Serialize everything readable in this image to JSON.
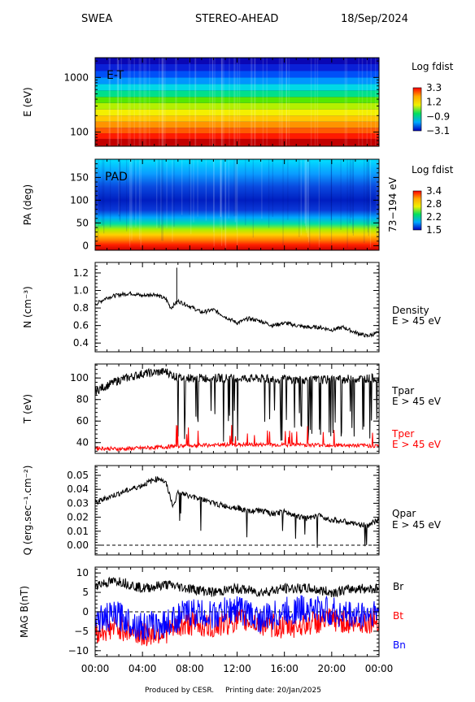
{
  "header": {
    "instrument": "SWEA",
    "spacecraft": "STEREO-AHEAD",
    "date": "18/Sep/2024"
  },
  "footer": {
    "produced_by": "Produced by CESR.",
    "printing_date": "Printing date: 20/Jan/2025"
  },
  "x_axis": {
    "ticks": [
      0,
      4,
      8,
      12,
      16,
      20,
      24
    ],
    "tick_labels": [
      "00:00",
      "04:00",
      "08:00",
      "12:00",
      "16:00",
      "20:00",
      "00:00"
    ],
    "range_hours": [
      0,
      24
    ]
  },
  "colors": {
    "black": "#000000",
    "red": "#ff0000",
    "blue": "#0000ff"
  },
  "chart_data": [
    {
      "type": "heatmap",
      "panel": "energy-time",
      "label": "E-T",
      "ylabel": "E (eV)",
      "yscale": "log",
      "ylim": [
        55,
        2300
      ],
      "yticks": [
        100,
        1000
      ],
      "ytick_labels": [
        "100",
        "1000"
      ],
      "energy_bands_eV": [
        60,
        75,
        95,
        120,
        155,
        200,
        260,
        340,
        440,
        580,
        760,
        1000,
        1320,
        1750,
        2250
      ],
      "band_colors": [
        "#c20000",
        "#ff1a00",
        "#ff5a00",
        "#ff9400",
        "#ffc800",
        "#f4f000",
        "#b4f000",
        "#56e800",
        "#00e08a",
        "#00d8e6",
        "#0096ff",
        "#0050f8",
        "#0a20d8",
        "#0a06b4"
      ],
      "colorbar": {
        "title": "Log fdist",
        "labels": [
          "3.3",
          "1.2",
          "−0.9",
          "−3.1"
        ],
        "range": [
          -3.1,
          3.3
        ]
      }
    },
    {
      "type": "heatmap",
      "panel": "pitch-angle",
      "label": "PAD",
      "ylabel": "PA (deg)",
      "right_label": "73−194 eV",
      "ylim": [
        -10,
        190
      ],
      "yticks": [
        0,
        50,
        100,
        150
      ],
      "ytick_labels": [
        "0",
        "50",
        "100",
        "150"
      ],
      "colorbar": {
        "title": "Log fdist",
        "labels": [
          "3.4",
          "2.8",
          "2.2",
          "1.5"
        ],
        "range": [
          1.5,
          3.4
        ]
      }
    },
    {
      "type": "line",
      "panel": "density",
      "ylabel": "N (cm⁻³)",
      "legend": [
        "Density",
        "E > 45 eV"
      ],
      "ylim": [
        0.3,
        1.32
      ],
      "yticks": [
        0.4,
        0.6,
        0.8,
        1.0,
        1.2
      ],
      "ytick_labels": [
        "0.4",
        "0.6",
        "0.8",
        "1.0",
        "1.2"
      ],
      "x_hours": [
        0,
        1,
        2,
        3,
        4,
        5,
        6,
        6.4,
        7,
        8,
        9,
        10,
        11,
        12,
        13,
        14,
        15,
        16,
        17,
        18,
        19,
        20,
        21,
        22,
        23,
        24
      ],
      "values": [
        0.84,
        0.92,
        0.95,
        0.97,
        0.94,
        0.96,
        0.9,
        0.8,
        0.88,
        0.82,
        0.75,
        0.78,
        0.7,
        0.63,
        0.68,
        0.65,
        0.6,
        0.63,
        0.6,
        0.58,
        0.58,
        0.55,
        0.58,
        0.52,
        0.48,
        0.52
      ],
      "spike": {
        "x": 6.9,
        "y": 1.26
      }
    },
    {
      "type": "line",
      "panel": "temperature",
      "ylabel": "T (eV)",
      "ylim": [
        30,
        113
      ],
      "yticks": [
        40,
        60,
        80,
        100
      ],
      "ytick_labels": [
        "40",
        "60",
        "80",
        "100"
      ],
      "series": [
        {
          "name": "Tpar",
          "sublabel": "E > 45 eV",
          "color": "#000000",
          "x_hours": [
            0,
            2,
            4,
            6,
            7,
            12,
            18,
            24
          ],
          "values": [
            88,
            98,
            104,
            106,
            100,
            100,
            98,
            100
          ]
        },
        {
          "name": "Tper",
          "sublabel": "E > 45 eV",
          "color": "#ff0000",
          "x_hours": [
            0,
            2,
            4,
            6,
            7,
            12,
            18,
            24
          ],
          "values": [
            35,
            34,
            35,
            36,
            37,
            38,
            38,
            37
          ]
        }
      ]
    },
    {
      "type": "line",
      "panel": "heat-flux",
      "ylabel": "Q (erg.sec⁻¹.cm⁻²)",
      "legend": [
        "Qpar",
        "E > 45 eV"
      ],
      "ylim": [
        -0.007,
        0.057
      ],
      "yticks": [
        0.0,
        0.01,
        0.02,
        0.03,
        0.04,
        0.05
      ],
      "ytick_labels": [
        "0.00",
        "0.01",
        "0.02",
        "0.03",
        "0.04",
        "0.05"
      ],
      "zero_line": true,
      "x_hours": [
        0,
        1,
        2,
        3,
        4,
        5,
        5.5,
        6,
        6.6,
        7,
        8,
        9,
        10,
        11,
        12,
        13,
        14,
        15,
        16,
        17,
        18,
        19,
        20,
        21,
        22,
        23,
        24
      ],
      "values": [
        0.03,
        0.034,
        0.037,
        0.04,
        0.043,
        0.047,
        0.048,
        0.044,
        0.028,
        0.038,
        0.035,
        0.033,
        0.03,
        0.028,
        0.027,
        0.024,
        0.025,
        0.022,
        0.024,
        0.021,
        0.019,
        0.021,
        0.018,
        0.017,
        0.015,
        0.014,
        0.018
      ]
    },
    {
      "type": "line",
      "panel": "magnetic-field",
      "ylabel": "MAG B(nT)",
      "ylim": [
        -11.5,
        11.5
      ],
      "yticks": [
        -10,
        -5,
        0,
        5,
        10
      ],
      "ytick_labels": [
        "−10",
        "−5",
        "0",
        "5",
        "10"
      ],
      "zero_line": true,
      "series": [
        {
          "name": "Br",
          "color": "#000000",
          "x_hours": [
            0,
            2,
            4,
            6,
            8,
            10,
            12,
            14,
            16,
            18,
            20,
            22,
            24
          ],
          "values": [
            7,
            8,
            6,
            7,
            6,
            5,
            6,
            5,
            6,
            6,
            5,
            6,
            6
          ]
        },
        {
          "name": "Bt",
          "color": "#ff0000",
          "x_hours": [
            0,
            2,
            4,
            6,
            8,
            10,
            12,
            14,
            16,
            18,
            20,
            22,
            24
          ],
          "values": [
            -5,
            -4,
            -6,
            -5,
            -3,
            -4,
            -2,
            -3,
            -4,
            -3,
            -2,
            -3,
            -2
          ]
        },
        {
          "name": "Bn",
          "color": "#0000ff",
          "x_hours": [
            0,
            2,
            4,
            6,
            8,
            10,
            12,
            14,
            16,
            18,
            20,
            22,
            24
          ],
          "values": [
            -2,
            -1,
            -4,
            -3,
            0,
            -1,
            1,
            -2,
            0,
            1,
            0,
            -1,
            0
          ]
        }
      ]
    }
  ]
}
